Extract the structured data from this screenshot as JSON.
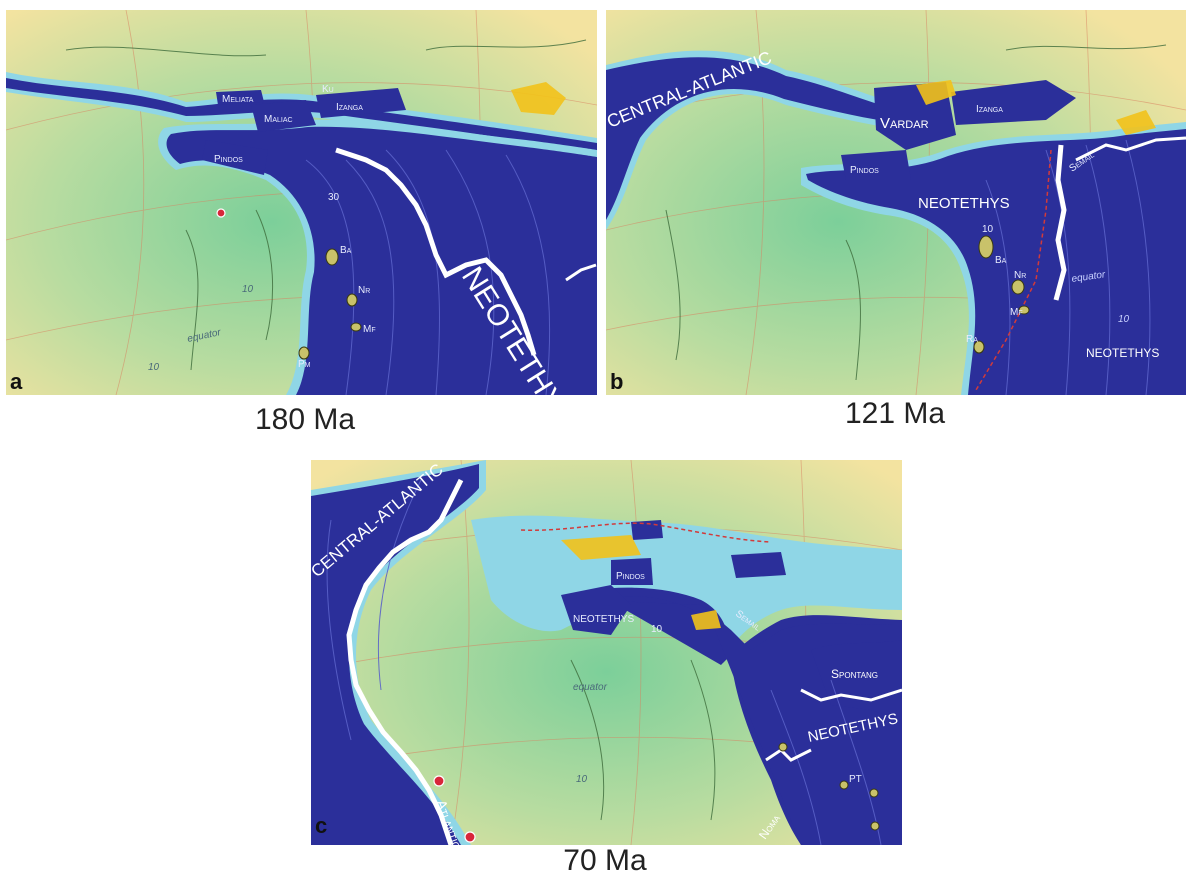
{
  "panels": [
    {
      "letter": "a",
      "age": "180 Ma",
      "ocean_labels": [
        "NEOTETHYS",
        "Pindos",
        "Maliac",
        "Meliata",
        "Izanga",
        "Ku"
      ],
      "seamount_labels": [
        "Ba",
        "Nr",
        "Mf",
        "Pm"
      ],
      "map_text": [
        "30",
        "10",
        "10",
        "equator"
      ]
    },
    {
      "letter": "b",
      "age": "121 Ma",
      "ocean_labels": [
        "CENTRAL-ATLANTIC",
        "Vardar",
        "Izanga",
        "Pindos",
        "NEOTETHYS",
        "Semail",
        "NEOTETHYS"
      ],
      "seamount_labels": [
        "Ba",
        "Nr",
        "Mf",
        "Ra"
      ],
      "map_text": [
        "10",
        "equator",
        "10"
      ]
    },
    {
      "letter": "c",
      "age": "70 Ma",
      "ocean_labels": [
        "CENTRAL-ATLANTIC",
        "Pindos",
        "NEOTETHYS",
        "Semail",
        "Spontang",
        "NEOTETHYS",
        "Atlantic",
        "Noma"
      ],
      "seamount_labels": [
        "PT"
      ],
      "map_text": [
        "equator",
        "10",
        "10"
      ]
    }
  ],
  "colors": {
    "ocean": "#2b2f9a",
    "shelf": "#8fd6e6",
    "land_green": "#a8d8a0",
    "land_yellow": "#f4e49a",
    "ridge": "#ffffff",
    "hotspot": "#d8263a",
    "orogen": "#f2c21a"
  }
}
